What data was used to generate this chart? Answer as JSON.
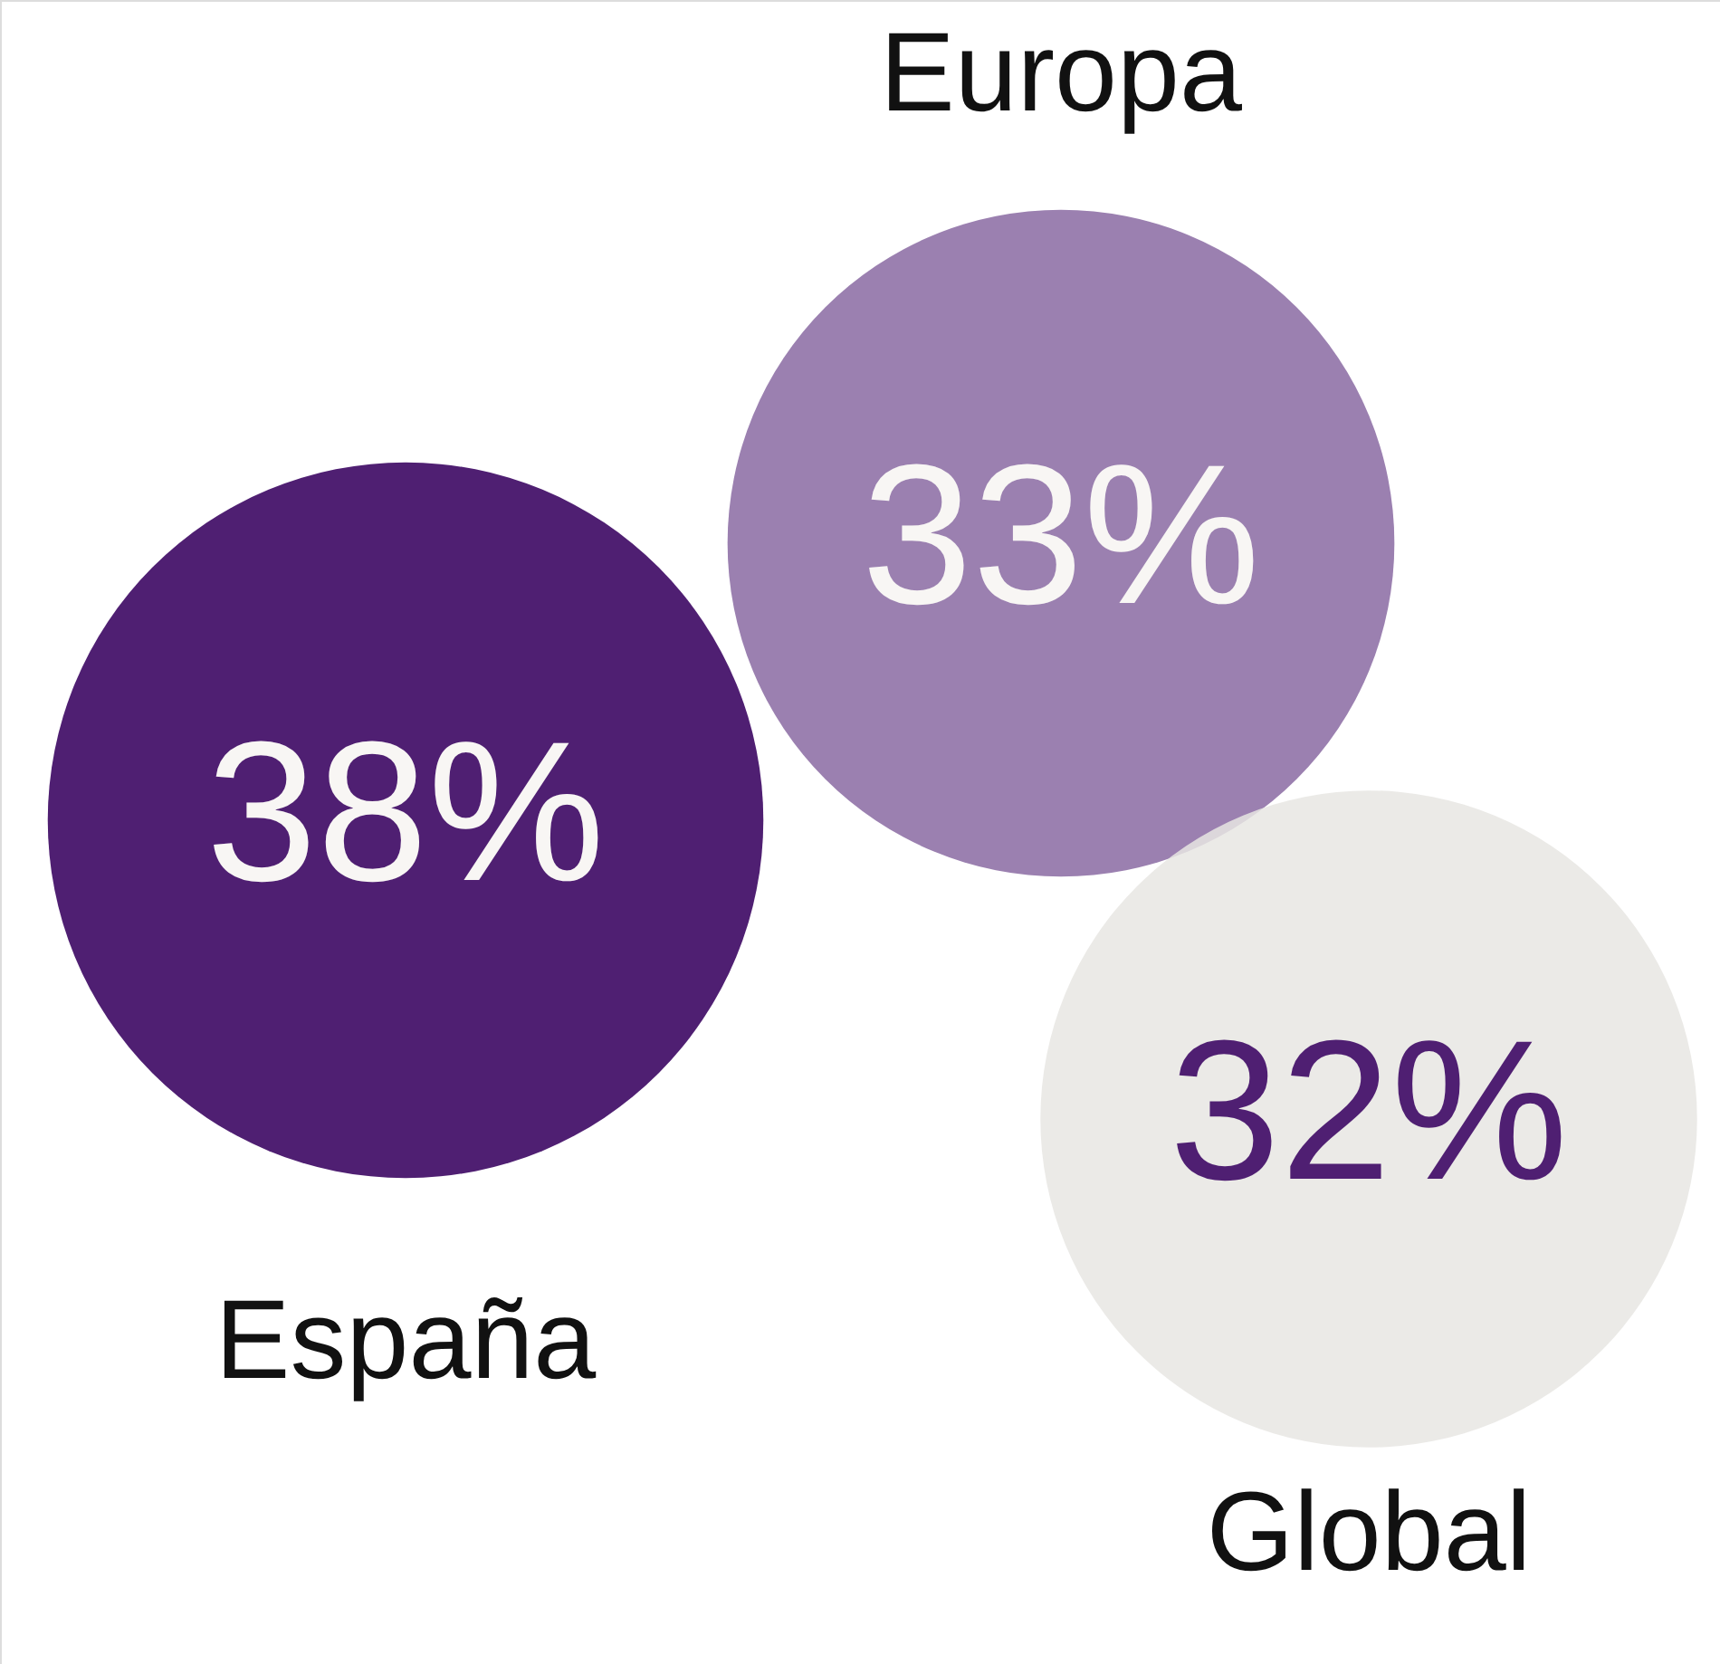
{
  "chart_data": {
    "type": "other",
    "categories": [
      "España",
      "Europa",
      "Global"
    ],
    "values": [
      38,
      33,
      32
    ],
    "colors": [
      "#4f1f72",
      "#9b80b0",
      "#e8e6e3"
    ],
    "value_labels": [
      "38%",
      "33%",
      "32%"
    ]
  }
}
